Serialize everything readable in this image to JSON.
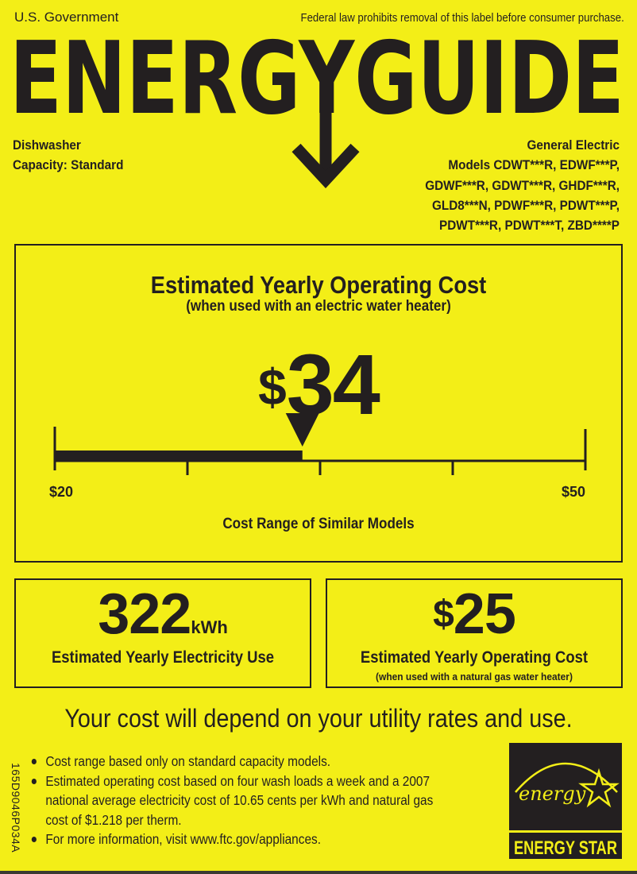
{
  "header": {
    "issuer": "U.S. Government",
    "notice": "Federal law prohibits removal of this label before consumer purchase.",
    "logo_text": "ENERGYGUIDE"
  },
  "product": {
    "type": "Dishwasher",
    "capacity": "Capacity: Standard",
    "manufacturer": "General Electric",
    "model_lines": [
      "Models CDWT***R, EDWF***P,",
      "GDWF***R, GDWT***R, GHDF***R,",
      "GLD8***N, PDWF***R, PDWT***P,",
      "PDWT***R, PDWT***T, ZBD****P"
    ]
  },
  "operating_cost": {
    "title": "Estimated Yearly Operating Cost",
    "subtitle": "(when used with an electric water heater)",
    "currency": "$",
    "value": "34",
    "value_number": 34,
    "range_min_label": "$20",
    "range_max_label": "$50",
    "range_min": 20,
    "range_max": 50,
    "range_label": "Cost Range of Similar Models"
  },
  "electricity": {
    "value": "322",
    "unit": "kWh",
    "label": "Estimated Yearly Electricity Use"
  },
  "gas_cost": {
    "currency": "$",
    "value": "25",
    "label": "Estimated Yearly Operating Cost",
    "sublabel": "(when used with a natural gas water heater)"
  },
  "depend_statement": "Your cost will depend on your utility rates and use.",
  "notes": [
    "Cost range based only on standard capacity models.",
    "Estimated operating cost based on four wash loads a week and a 2007",
    "national average electricity cost of 10.65 cents per kWh and natural gas",
    "cost of $1.218 per therm.",
    "For more information, visit www.ftc.gov/appliances."
  ],
  "label_code": "165D9046P034A",
  "energy_star": {
    "script": "energy",
    "label": "ENERGY STAR"
  },
  "colors": {
    "background": "#f3ee17",
    "ink": "#231f20"
  }
}
